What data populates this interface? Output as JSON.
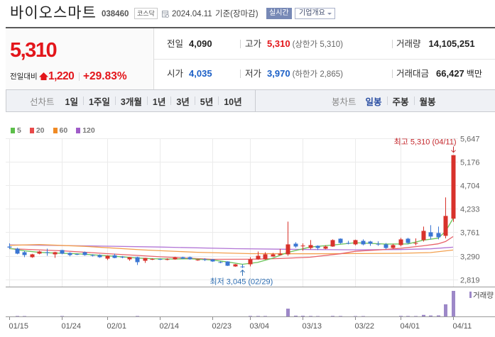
{
  "header": {
    "company_name": "바이오스마트",
    "stock_code": "038460",
    "market_badge": "코스닥",
    "date": "2024.04.11",
    "date_suffix": "기준(장마감)",
    "realtime_label": "실시간",
    "company_info_label": "기업개요"
  },
  "price": {
    "current": "5,310",
    "change_label": "전일대비",
    "change_amount": "1,220",
    "change_percent": "+29.83%",
    "direction": "up"
  },
  "stats": {
    "prev_close": {
      "label": "전일",
      "value": "4,090"
    },
    "high": {
      "label": "고가",
      "value": "5,310",
      "note": "(상한가 5,310)"
    },
    "volume": {
      "label": "거래량",
      "value": "14,105,251"
    },
    "open": {
      "label": "시가",
      "value": "4,035"
    },
    "low": {
      "label": "저가",
      "value": "3,970",
      "note": "(하한가 2,865)"
    },
    "trade_value": {
      "label": "거래대금",
      "value": "66,427",
      "unit": "백만"
    }
  },
  "tabs": {
    "line_chart_label": "선차트",
    "line_chart_periods": [
      "1일",
      "1주일",
      "3개월",
      "1년",
      "3년",
      "5년",
      "10년"
    ],
    "candle_chart_label": "봉차트",
    "candle_chart_periods": [
      "일봉",
      "주봉",
      "월봉"
    ],
    "active_candle_period": "일봉"
  },
  "colors": {
    "up": "#e3161b",
    "down": "#1b5fc6",
    "candle_up": "#d8322b",
    "candle_down": "#3b76d3",
    "volume_bar": "#9d88c8",
    "high_label": "#c4262b",
    "low_label": "#2e6eb3"
  },
  "chart_data": {
    "type": "candlestick",
    "title": "",
    "legend": [
      {
        "name": "5",
        "color": "#5cbf4a"
      },
      {
        "name": "20",
        "color": "#e84a4a"
      },
      {
        "name": "60",
        "color": "#f08a24"
      },
      {
        "name": "120",
        "color": "#a05cc8"
      }
    ],
    "ylim": [
      2819,
      5647
    ],
    "y_ticks": [
      5647,
      5176,
      4704,
      4233,
      3761,
      3290,
      2819
    ],
    "y_tick_labels": [
      "5,647",
      "5,176",
      "4,704",
      "4,233",
      "3,761",
      "3,290",
      "2,819"
    ],
    "x_ticks": [
      {
        "index": 0,
        "label": "01/15"
      },
      {
        "index": 7,
        "label": "01/24"
      },
      {
        "index": 13,
        "label": "02/01"
      },
      {
        "index": 20,
        "label": "02/14"
      },
      {
        "index": 27,
        "label": "02/23"
      },
      {
        "index": 32,
        "label": "03/04"
      },
      {
        "index": 39,
        "label": "03/13"
      },
      {
        "index": 46,
        "label": "03/22"
      },
      {
        "index": 52,
        "label": "04/01"
      },
      {
        "index": 59,
        "label": "04/11"
      }
    ],
    "candle_format": [
      "open",
      "high",
      "low",
      "close"
    ],
    "candles": [
      [
        3475,
        3540,
        3430,
        3455
      ],
      [
        3433,
        3450,
        3320,
        3333
      ],
      [
        3362,
        3390,
        3262,
        3305
      ],
      [
        3262,
        3330,
        3250,
        3319
      ],
      [
        3333,
        3390,
        3320,
        3376
      ],
      [
        3362,
        3433,
        3290,
        3347
      ],
      [
        3319,
        3370,
        3247,
        3362
      ],
      [
        3405,
        3410,
        3320,
        3333
      ],
      [
        3347,
        3360,
        3280,
        3305
      ],
      [
        3325,
        3335,
        3305,
        3315
      ],
      [
        3362,
        3376,
        3290,
        3305
      ],
      [
        3305,
        3320,
        3276,
        3295
      ],
      [
        3305,
        3319,
        3250,
        3262
      ],
      [
        3233,
        3300,
        3205,
        3290
      ],
      [
        3300,
        3333,
        3240,
        3247
      ],
      [
        3270,
        3285,
        3240,
        3255
      ],
      [
        3219,
        3265,
        3190,
        3262
      ],
      [
        3262,
        3270,
        3105,
        3162
      ],
      [
        3190,
        3250,
        3148,
        3247
      ],
      [
        3215,
        3240,
        3205,
        3225
      ],
      [
        3225,
        3235,
        3205,
        3215
      ],
      [
        3210,
        3240,
        3200,
        3222
      ],
      [
        3219,
        3270,
        3210,
        3262
      ],
      [
        3262,
        3270,
        3225,
        3233
      ],
      [
        3262,
        3275,
        3210,
        3219
      ],
      [
        3200,
        3220,
        3190,
        3212
      ],
      [
        3220,
        3240,
        3185,
        3205
      ],
      [
        3219,
        3225,
        3170,
        3176
      ],
      [
        3165,
        3180,
        3140,
        3150
      ],
      [
        3176,
        3180,
        3085,
        3090
      ],
      [
        3076,
        3125,
        3070,
        3119
      ],
      [
        3075,
        3119,
        3045,
        3062
      ],
      [
        3119,
        3262,
        3076,
        3219
      ],
      [
        3219,
        3376,
        3210,
        3290
      ],
      [
        3219,
        3362,
        3210,
        3319
      ],
      [
        3276,
        3347,
        3270,
        3319
      ],
      [
        3305,
        3430,
        3300,
        3333
      ],
      [
        3319,
        3976,
        3290,
        3519
      ],
      [
        3533,
        3562,
        3450,
        3476
      ],
      [
        3480,
        3540,
        3390,
        3495
      ],
      [
        3447,
        3605,
        3419,
        3505
      ],
      [
        3490,
        3500,
        3405,
        3447
      ],
      [
        3433,
        3500,
        3420,
        3476
      ],
      [
        3476,
        3620,
        3470,
        3605
      ],
      [
        3633,
        3640,
        3533,
        3547
      ],
      [
        3547,
        3590,
        3520,
        3533
      ],
      [
        3519,
        3615,
        3500,
        3605
      ],
      [
        3590,
        3620,
        3500,
        3519
      ],
      [
        3576,
        3590,
        3490,
        3533
      ],
      [
        3530,
        3580,
        3490,
        3520
      ],
      [
        3519,
        3545,
        3420,
        3447
      ],
      [
        3447,
        3533,
        3430,
        3505
      ],
      [
        3505,
        3650,
        3480,
        3619
      ],
      [
        3633,
        3650,
        3530,
        3547
      ],
      [
        3533,
        3640,
        3500,
        3547
      ],
      [
        3605,
        3876,
        3575,
        3790
      ],
      [
        3762,
        3904,
        3620,
        3676
      ],
      [
        3747,
        3876,
        3620,
        3662
      ],
      [
        3690,
        4462,
        3640,
        4090
      ],
      [
        4035,
        5310,
        3970,
        5310
      ]
    ],
    "volume": [
      180000,
      260000,
      210000,
      150000,
      170000,
      160000,
      190000,
      230000,
      140000,
      120000,
      150000,
      110000,
      160000,
      170000,
      140000,
      120000,
      130000,
      240000,
      150000,
      100000,
      90000,
      110000,
      130000,
      100000,
      120000,
      90000,
      100000,
      130000,
      110000,
      190000,
      140000,
      160000,
      280000,
      250000,
      230000,
      160000,
      190000,
      4300000,
      420000,
      380000,
      260000,
      200000,
      180000,
      300000,
      240000,
      170000,
      210000,
      200000,
      160000,
      130000,
      190000,
      170000,
      300000,
      260000,
      220000,
      850000,
      520000,
      560000,
      6700000,
      14105251
    ],
    "volume_legend": "거래량",
    "moving_averages": [
      {
        "period": 5,
        "color": "#6cc35a",
        "points": [
          [
            0,
            3440
          ],
          [
            2,
            3390
          ],
          [
            4,
            3358
          ],
          [
            6,
            3345
          ],
          [
            9,
            3332
          ],
          [
            12,
            3300
          ],
          [
            14,
            3280
          ],
          [
            17,
            3245
          ],
          [
            19,
            3230
          ],
          [
            22,
            3225
          ],
          [
            24,
            3230
          ],
          [
            27,
            3205
          ],
          [
            29,
            3167
          ],
          [
            31,
            3119
          ],
          [
            33,
            3156
          ],
          [
            35,
            3242
          ],
          [
            37,
            3356
          ],
          [
            40,
            3466
          ],
          [
            43,
            3506
          ],
          [
            46,
            3553
          ],
          [
            50,
            3525
          ],
          [
            53,
            3528
          ],
          [
            55,
            3602
          ],
          [
            57,
            3644
          ],
          [
            58,
            3780
          ],
          [
            59,
            4040
          ]
        ]
      },
      {
        "period": 20,
        "color": "#e8626a",
        "points": [
          [
            0,
            3433
          ],
          [
            7,
            3390
          ],
          [
            13,
            3333
          ],
          [
            20,
            3270
          ],
          [
            27,
            3219
          ],
          [
            32,
            3220
          ],
          [
            36,
            3235
          ],
          [
            40,
            3262
          ],
          [
            44,
            3330
          ],
          [
            46,
            3380
          ],
          [
            49,
            3405
          ],
          [
            52,
            3440
          ],
          [
            55,
            3490
          ],
          [
            57,
            3530
          ],
          [
            58,
            3576
          ],
          [
            59,
            3676
          ]
        ]
      },
      {
        "period": 60,
        "color": "#f3a04e",
        "points": [
          [
            0,
            3500
          ],
          [
            4,
            3515
          ],
          [
            10,
            3480
          ],
          [
            18,
            3405
          ],
          [
            25,
            3360
          ],
          [
            32,
            3333
          ],
          [
            40,
            3330
          ],
          [
            46,
            3335
          ],
          [
            52,
            3340
          ],
          [
            56,
            3355
          ],
          [
            59,
            3405
          ]
        ]
      },
      {
        "period": 120,
        "color": "#b276d6",
        "points": [
          [
            0,
            3510
          ],
          [
            10,
            3490
          ],
          [
            20,
            3465
          ],
          [
            30,
            3433
          ],
          [
            40,
            3415
          ],
          [
            46,
            3410
          ],
          [
            52,
            3415
          ],
          [
            56,
            3430
          ],
          [
            59,
            3462
          ]
        ]
      }
    ],
    "annotations": {
      "high": {
        "label": "최고 5,310 (04/11)",
        "index": 59,
        "price": 5310
      },
      "low": {
        "label": "최저 3,045 (02/29)",
        "index": 31,
        "price": 3045
      }
    }
  }
}
